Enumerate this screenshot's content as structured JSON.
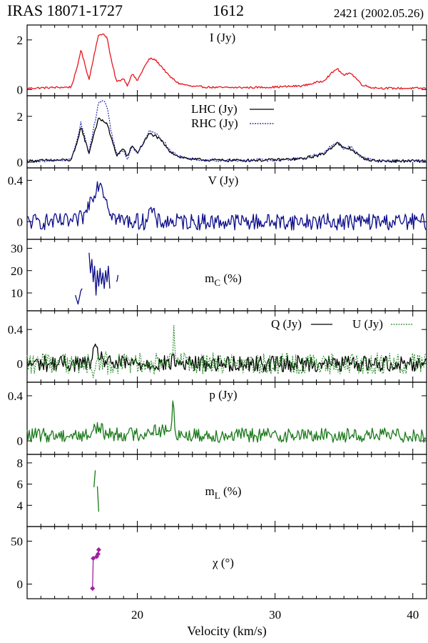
{
  "header": {
    "source": "IRAS 18071-1727",
    "line": "1612",
    "epoch": "2421 (2002.05.26)"
  },
  "colors": {
    "I": "#e8141e",
    "LHC": "#000000",
    "RHC": "#1a1aa0",
    "V": "#0d0d8a",
    "mC": "#0d0d8a",
    "Q": "#000000",
    "U": "#2a8a2a",
    "p": "#1a7a1a",
    "mL": "#1a7a1a",
    "chi": "#a020a0"
  },
  "chart_data": {
    "type": "line",
    "xlabel": "Velocity (km/s)",
    "xlim": [
      12,
      41
    ],
    "xticks": [
      20,
      30,
      40
    ],
    "panels": [
      {
        "id": "I",
        "label": "I (Jy)",
        "ylim": [
          -0.25,
          2.6
        ],
        "yticks": [
          {
            "v": 0,
            "t": "0"
          },
          {
            "v": 2,
            "t": "2"
          }
        ],
        "series": [
          {
            "key": "I",
            "style": "solid",
            "noise": 0.025,
            "x": [
              12,
              15.2,
              15.6,
              15.9,
              16.2,
              16.5,
              16.9,
              17.2,
              17.5,
              17.8,
              18.1,
              18.5,
              19.0,
              19.3,
              19.6,
              20.0,
              20.5,
              20.9,
              21.3,
              21.8,
              22.3,
              23.0,
              24.0,
              26.0,
              28.0,
              30.0,
              32.0,
              33.5,
              34.5,
              35.0,
              35.4,
              35.8,
              36.3,
              37.0,
              38.0,
              41
            ],
            "y": [
              0.05,
              0.1,
              0.8,
              1.6,
              1.0,
              0.4,
              1.5,
              2.2,
              2.25,
              2.1,
              1.2,
              0.3,
              0.45,
              0.15,
              0.65,
              0.35,
              0.9,
              1.25,
              1.2,
              0.9,
              0.55,
              0.25,
              0.12,
              0.08,
              0.08,
              0.1,
              0.15,
              0.35,
              0.85,
              0.55,
              0.7,
              0.5,
              0.2,
              0.08,
              0.05,
              0.05
            ]
          }
        ]
      },
      {
        "id": "CP",
        "label": "",
        "legend": [
          {
            "key": "LHC",
            "text": "LHC (Jy)",
            "style": "solid"
          },
          {
            "key": "RHC",
            "text": "RHC (Jy)",
            "style": "dotted"
          }
        ],
        "ylim": [
          -0.25,
          2.9
        ],
        "yticks": [
          {
            "v": 0,
            "t": "0"
          },
          {
            "v": 2,
            "t": "2"
          }
        ],
        "series": [
          {
            "key": "LHC",
            "style": "solid",
            "noise": 0.04,
            "x": [
              12,
              15.2,
              15.6,
              15.9,
              16.2,
              16.5,
              16.9,
              17.2,
              17.5,
              17.8,
              18.1,
              18.5,
              19.0,
              19.3,
              19.6,
              20.0,
              20.5,
              20.9,
              21.3,
              21.8,
              22.3,
              23.0,
              24.0,
              26.0,
              28.0,
              30.0,
              32.0,
              33.5,
              34.5,
              35.0,
              35.4,
              35.8,
              36.3,
              37.0,
              38.0,
              41
            ],
            "y": [
              0.05,
              0.1,
              0.75,
              1.55,
              0.95,
              0.4,
              1.35,
              1.9,
              1.8,
              1.7,
              1.05,
              0.3,
              0.6,
              0.2,
              0.75,
              0.4,
              0.9,
              1.25,
              1.15,
              0.9,
              0.5,
              0.25,
              0.12,
              0.08,
              0.08,
              0.1,
              0.15,
              0.35,
              0.85,
              0.6,
              0.6,
              0.45,
              0.2,
              0.08,
              0.05,
              0.05
            ]
          },
          {
            "key": "RHC",
            "style": "dotted",
            "noise": 0.04,
            "x": [
              12,
              15.2,
              15.6,
              15.9,
              16.2,
              16.5,
              16.9,
              17.2,
              17.5,
              17.8,
              18.1,
              18.5,
              19.0,
              19.3,
              19.6,
              20.0,
              20.5,
              20.9,
              21.3,
              21.8,
              22.3,
              23.0,
              24.0,
              26.0,
              28.0,
              30.0,
              32.0,
              33.5,
              34.5,
              35.0,
              35.4,
              35.8,
              36.3,
              37.0,
              38.0,
              41
            ],
            "y": [
              0.05,
              0.1,
              0.85,
              1.75,
              1.05,
              0.45,
              1.7,
              2.6,
              2.7,
              2.45,
              1.35,
              0.3,
              0.5,
              0.15,
              0.7,
              0.35,
              0.95,
              1.4,
              1.3,
              1.0,
              0.55,
              0.25,
              0.12,
              0.08,
              0.08,
              0.1,
              0.15,
              0.4,
              0.9,
              0.55,
              0.7,
              0.5,
              0.2,
              0.08,
              0.05,
              0.05
            ]
          }
        ]
      },
      {
        "id": "V",
        "label": "V (Jy)",
        "ylim": [
          -0.17,
          0.52
        ],
        "yticks": [
          {
            "v": 0,
            "t": "0"
          },
          {
            "v": 0.4,
            "t": "0.4"
          }
        ],
        "series": [
          {
            "key": "V",
            "style": "solid",
            "noise": 0.05,
            "x": [
              12,
              15.5,
              16.2,
              16.6,
              17.0,
              17.3,
              17.6,
              18.0,
              18.4,
              19.0,
              20.5,
              21.0,
              21.4,
              24,
              30,
              35,
              41
            ],
            "y": [
              0,
              0,
              0.06,
              0.22,
              0.32,
              0.4,
              0.28,
              0.12,
              0.03,
              0.01,
              0.0,
              0.12,
              0.0,
              0,
              0,
              0,
              0
            ]
          }
        ]
      },
      {
        "id": "mC",
        "label": "mC (%)",
        "ylim": [
          2,
          34
        ],
        "yticks": [
          {
            "v": 10,
            "t": "10"
          },
          {
            "v": 20,
            "t": "20"
          },
          {
            "v": 30,
            "t": "30"
          }
        ],
        "series": [
          {
            "key": "mC",
            "style": "solid",
            "noise": 0,
            "x": [
              15.5,
              15.6,
              15.7,
              15.8,
              15.9,
              16.0
            ],
            "y": [
              9,
              7,
              5,
              8,
              11,
              12
            ]
          },
          {
            "key": "mC",
            "style": "solid",
            "noise": 0,
            "x": [
              16.5,
              16.6,
              16.7,
              16.8,
              16.9,
              17.0,
              17.1,
              17.2,
              17.3,
              17.4,
              17.5,
              17.6,
              17.7,
              17.8,
              17.9,
              18.0
            ],
            "y": [
              28,
              19,
              25,
              15,
              22,
              9,
              20,
              13,
              21,
              14,
              19,
              12,
              20,
              15,
              22,
              12
            ]
          },
          {
            "key": "mC",
            "style": "solid",
            "noise": 0,
            "x": [
              18.5,
              18.55,
              18.6
            ],
            "y": [
              15,
              16,
              18
            ]
          }
        ]
      },
      {
        "id": "QU",
        "label": "",
        "legend": [
          {
            "key": "Q",
            "text": "Q (Jy)",
            "style": "solid"
          },
          {
            "key": "U",
            "text": "U (Jy)",
            "style": "dotted"
          }
        ],
        "ylim": [
          -0.22,
          0.62
        ],
        "yticks": [
          {
            "v": 0,
            "t": "0"
          },
          {
            "v": 0.4,
            "t": "0.4"
          }
        ],
        "series": [
          {
            "key": "Q",
            "style": "solid",
            "noise": 0.06,
            "x": [
              12,
              16.5,
              17.0,
              17.3,
              17.8,
              22.5,
              22.65,
              22.8,
              41
            ],
            "y": [
              0,
              0,
              0.15,
              0.1,
              0,
              0,
              0.1,
              0,
              0
            ]
          },
          {
            "key": "U",
            "style": "dotted",
            "noise": 0.08,
            "x": [
              12,
              16.5,
              17.0,
              17.3,
              17.8,
              22.5,
              22.65,
              22.8,
              41
            ],
            "y": [
              0,
              0,
              -0.08,
              0.05,
              0,
              0,
              0.35,
              0,
              0
            ]
          }
        ]
      },
      {
        "id": "p",
        "label": "p (Jy)",
        "ylim": [
          -0.12,
          0.52
        ],
        "yticks": [
          {
            "v": 0,
            "t": "0"
          },
          {
            "v": 0.4,
            "t": "0.4"
          }
        ],
        "series": [
          {
            "key": "p",
            "style": "solid",
            "noise": 0.04,
            "x": [
              12,
              16.5,
              17.0,
              17.3,
              17.8,
              20.5,
              21.0,
              22.4,
              22.6,
              22.8,
              23.5,
              41
            ],
            "y": [
              0.05,
              0.05,
              0.13,
              0.1,
              0.06,
              0.06,
              0.1,
              0.08,
              0.33,
              0.07,
              0.05,
              0.05
            ]
          }
        ]
      },
      {
        "id": "mL",
        "label": "mL (%)",
        "ylim": [
          2,
          8.8
        ],
        "yticks": [
          {
            "v": 4,
            "t": "4"
          },
          {
            "v": 6,
            "t": "6"
          },
          {
            "v": 8,
            "t": "8"
          }
        ],
        "series": [
          {
            "key": "mL",
            "style": "solid",
            "noise": 0,
            "x": [
              16.85,
              16.95
            ],
            "y": [
              5.7,
              7.3
            ]
          },
          {
            "key": "mL",
            "style": "solid",
            "noise": 0,
            "x": [
              17.1,
              17.2
            ],
            "y": [
              5.8,
              3.4
            ]
          }
        ]
      },
      {
        "id": "chi",
        "label": "χ (°)",
        "ylim": [
          -17,
          67
        ],
        "yticks": [
          {
            "v": 0,
            "t": "0"
          },
          {
            "v": 50,
            "t": "50"
          }
        ],
        "series": [
          {
            "key": "chi",
            "style": "solid",
            "noise": 0,
            "markers": true,
            "x": [
              16.75,
              16.8,
              17.05,
              17.15,
              17.2
            ],
            "y": [
              -5,
              30,
              32,
              35,
              40
            ]
          }
        ]
      }
    ]
  }
}
